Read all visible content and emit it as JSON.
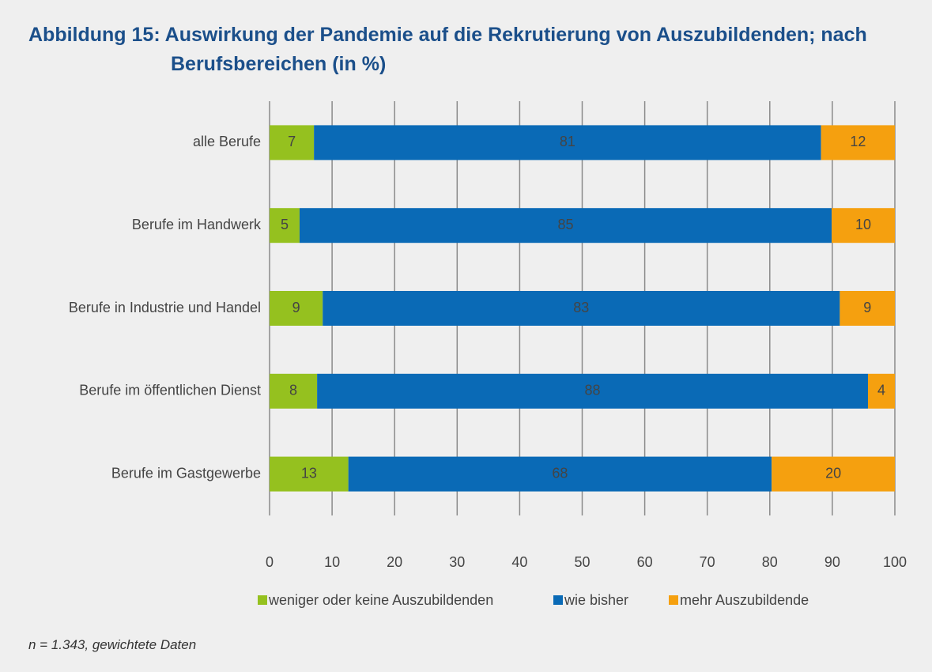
{
  "chart_data": {
    "type": "stacked-bar-horizontal",
    "title": "Abbildung 15: Auswirkung der Pandemie auf die Rekrutierung von Auszubildenden; nach Berufsbereichen (in %)",
    "categories": [
      "alle Berufe",
      "Berufe im Handwerk",
      "Berufe in Industrie und Handel",
      "Berufe im öffentlichen Dienst",
      "Berufe im Gastgewerbe"
    ],
    "series": [
      {
        "name": "weniger oder keine Auszubildenden",
        "color": "#95c11f",
        "label_color": "#555555",
        "values": [
          7.1,
          4.8,
          8.5,
          7.6,
          12.6
        ],
        "value_labels": [
          "7",
          "5",
          "9",
          "8",
          "13"
        ]
      },
      {
        "name": "wie bisher",
        "color": "#0a6ab6",
        "label_color": "#ffffff",
        "values": [
          81.1,
          85.1,
          82.7,
          88.1,
          67.7
        ],
        "value_labels": [
          "81",
          "85",
          "83",
          "88",
          "68"
        ]
      },
      {
        "name": "mehr Auszubildende",
        "color": "#f5a00f",
        "label_color": "#555555",
        "values": [
          11.8,
          10.1,
          8.8,
          4.3,
          19.7
        ],
        "value_labels": [
          "12",
          "10",
          "9",
          "4",
          "20"
        ]
      }
    ],
    "xlim": [
      0,
      100
    ],
    "xticks": [
      0,
      10,
      20,
      30,
      40,
      50,
      60,
      70,
      80,
      90,
      100
    ],
    "grid": true,
    "note": "n = 1.343, gewichtete Daten"
  }
}
